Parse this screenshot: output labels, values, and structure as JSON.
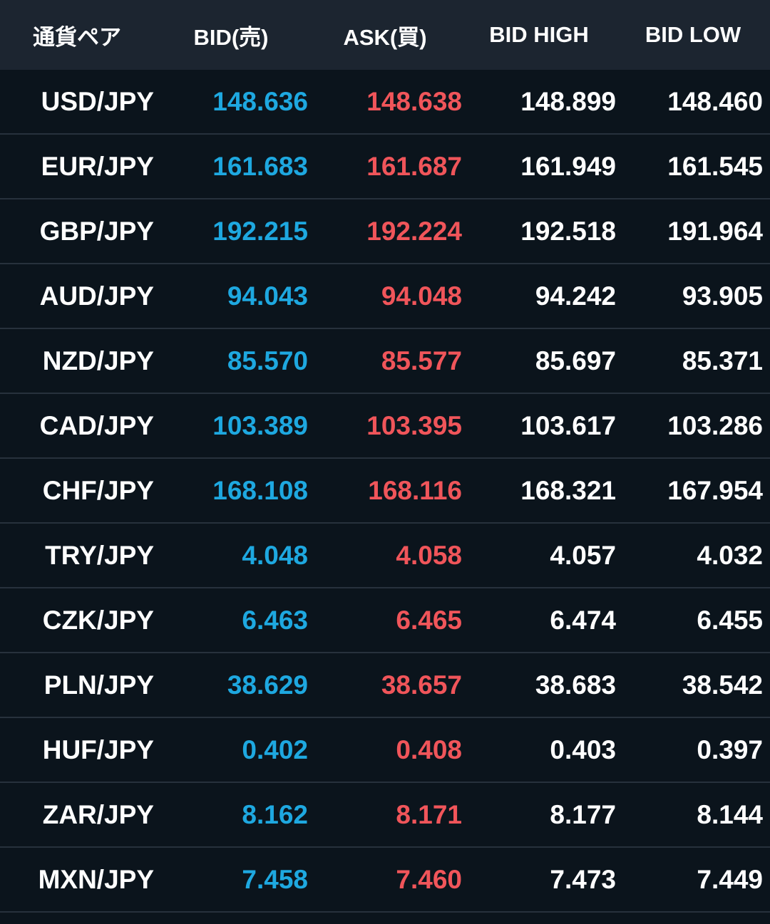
{
  "colors": {
    "background": "#0b141c",
    "header_background": "#1c2530",
    "divider": "#27313c",
    "bid": "#1ea8e0",
    "ask": "#f0555a",
    "text": "#ffffff"
  },
  "header": {
    "pair": "通貨ペア",
    "bid": "BID(売)",
    "ask": "ASK(買)",
    "bid_high": "BID HIGH",
    "bid_low": "BID LOW"
  },
  "rows": [
    {
      "pair": "USD/JPY",
      "bid": "148.636",
      "ask": "148.638",
      "high": "148.899",
      "low": "148.460"
    },
    {
      "pair": "EUR/JPY",
      "bid": "161.683",
      "ask": "161.687",
      "high": "161.949",
      "low": "161.545"
    },
    {
      "pair": "GBP/JPY",
      "bid": "192.215",
      "ask": "192.224",
      "high": "192.518",
      "low": "191.964"
    },
    {
      "pair": "AUD/JPY",
      "bid": "94.043",
      "ask": "94.048",
      "high": "94.242",
      "low": "93.905"
    },
    {
      "pair": "NZD/JPY",
      "bid": "85.570",
      "ask": "85.577",
      "high": "85.697",
      "low": "85.371"
    },
    {
      "pair": "CAD/JPY",
      "bid": "103.389",
      "ask": "103.395",
      "high": "103.617",
      "low": "103.286"
    },
    {
      "pair": "CHF/JPY",
      "bid": "168.108",
      "ask": "168.116",
      "high": "168.321",
      "low": "167.954"
    },
    {
      "pair": "TRY/JPY",
      "bid": "4.048",
      "ask": "4.058",
      "high": "4.057",
      "low": "4.032"
    },
    {
      "pair": "CZK/JPY",
      "bid": "6.463",
      "ask": "6.465",
      "high": "6.474",
      "low": "6.455"
    },
    {
      "pair": "PLN/JPY",
      "bid": "38.629",
      "ask": "38.657",
      "high": "38.683",
      "low": "38.542"
    },
    {
      "pair": "HUF/JPY",
      "bid": "0.402",
      "ask": "0.408",
      "high": "0.403",
      "low": "0.397"
    },
    {
      "pair": "ZAR/JPY",
      "bid": "8.162",
      "ask": "8.171",
      "high": "8.177",
      "low": "8.144"
    },
    {
      "pair": "MXN/JPY",
      "bid": "7.458",
      "ask": "7.460",
      "high": "7.473",
      "low": "7.449"
    }
  ]
}
